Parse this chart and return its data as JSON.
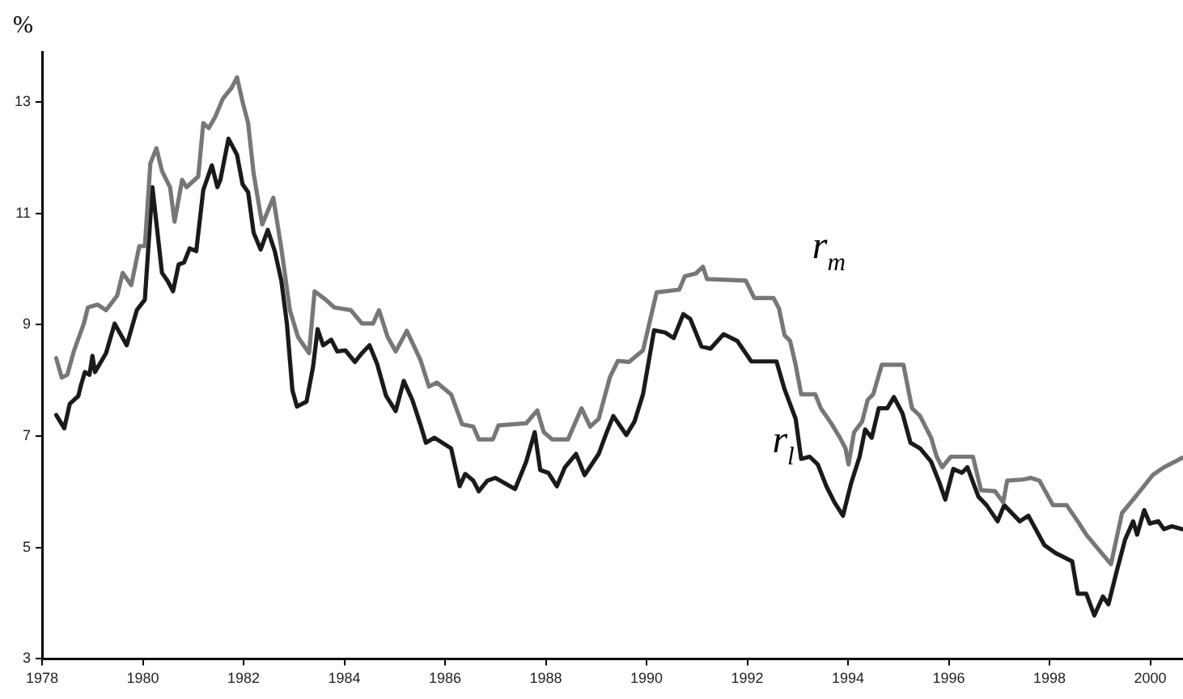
{
  "chart_data": {
    "type": "line",
    "ylabel": "%",
    "xlim": [
      1978,
      2000.65
    ],
    "xticks": [
      1978,
      1980,
      1982,
      1984,
      1986,
      1988,
      1990,
      1992,
      1994,
      1996,
      1998,
      2000
    ],
    "ylim": [
      3,
      13.9
    ],
    "yticks": [
      3,
      5,
      7,
      9,
      11,
      13
    ],
    "grid": false,
    "legend": false,
    "marker": "none",
    "line_style": "solid",
    "series": [
      {
        "name": "r$_{m}$",
        "color": "#777777",
        "x": [
          1978.28,
          1978.39,
          1978.5,
          1978.64,
          1978.83,
          1978.91,
          1979.1,
          1979.27,
          1979.49,
          1979.6,
          1979.77,
          1979.93,
          1980.04,
          1980.15,
          1980.27,
          1980.38,
          1980.54,
          1980.63,
          1980.78,
          1980.87,
          1981.1,
          1981.2,
          1981.31,
          1981.43,
          1981.59,
          1981.76,
          1981.87,
          1981.98,
          1982.09,
          1982.2,
          1982.37,
          1982.48,
          1982.59,
          1982.75,
          1982.92,
          1983.08,
          1983.3,
          1983.41,
          1983.63,
          1983.8,
          1984.13,
          1984.35,
          1984.57,
          1984.69,
          1984.86,
          1985.02,
          1985.24,
          1985.51,
          1985.68,
          1985.84,
          1986.12,
          1986.34,
          1986.56,
          1986.67,
          1986.95,
          1987.06,
          1987.61,
          1987.83,
          1987.96,
          1988.13,
          1988.44,
          1988.71,
          1988.88,
          1989.05,
          1989.27,
          1989.43,
          1989.65,
          1989.93,
          1990.2,
          1990.65,
          1990.76,
          1990.98,
          1991.12,
          1991.2,
          1991.97,
          1992.14,
          1992.52,
          1992.63,
          1992.74,
          1992.85,
          1992.96,
          1993.07,
          1993.35,
          1993.46,
          1993.68,
          1993.84,
          1993.95,
          1994.01,
          1994.12,
          1994.28,
          1994.39,
          1994.5,
          1994.67,
          1995.1,
          1995.27,
          1995.43,
          1995.65,
          1995.76,
          1995.87,
          1996.04,
          1996.48,
          1996.64,
          1996.92,
          1997.08,
          1997.16,
          1997.47,
          1997.63,
          1997.8,
          1998.07,
          1998.34,
          1998.56,
          1998.73,
          1998.95,
          1999.22,
          1999.44,
          1999.66,
          1999.83,
          2000.05,
          2000.27,
          2000.49,
          2000.63
        ],
        "values": [
          8.4,
          8.05,
          8.1,
          8.55,
          9.02,
          9.31,
          9.36,
          9.26,
          9.52,
          9.93,
          9.71,
          10.41,
          10.41,
          11.9,
          12.17,
          11.76,
          11.47,
          10.85,
          11.6,
          11.47,
          11.66,
          12.62,
          12.53,
          12.72,
          13.06,
          13.25,
          13.44,
          13.0,
          12.62,
          11.71,
          10.8,
          11.04,
          11.28,
          10.37,
          9.26,
          8.78,
          8.49,
          9.6,
          9.45,
          9.31,
          9.26,
          9.02,
          9.02,
          9.26,
          8.78,
          8.52,
          8.89,
          8.37,
          7.89,
          7.96,
          7.75,
          7.21,
          7.17,
          6.94,
          6.94,
          7.19,
          7.23,
          7.46,
          7.07,
          6.94,
          6.94,
          7.5,
          7.17,
          7.31,
          8.05,
          8.35,
          8.33,
          8.54,
          9.58,
          9.63,
          9.87,
          9.92,
          10.04,
          9.82,
          9.79,
          9.48,
          9.48,
          9.29,
          8.81,
          8.71,
          8.28,
          7.75,
          7.75,
          7.5,
          7.21,
          6.97,
          6.78,
          6.49,
          7.07,
          7.26,
          7.65,
          7.75,
          8.28,
          8.28,
          7.5,
          7.36,
          6.97,
          6.63,
          6.44,
          6.63,
          6.63,
          6.03,
          6.01,
          5.81,
          6.2,
          6.22,
          6.25,
          6.2,
          5.76,
          5.76,
          5.47,
          5.23,
          4.99,
          4.7,
          5.62,
          5.86,
          6.05,
          6.3,
          6.44,
          6.54,
          6.61
        ]
      },
      {
        "name": "r$_{l}$",
        "color": "#1a1a1a",
        "x": [
          1978.28,
          1978.44,
          1978.55,
          1978.72,
          1978.77,
          1978.85,
          1978.94,
          1979.0,
          1979.05,
          1979.27,
          1979.44,
          1979.68,
          1979.88,
          1980.04,
          1980.19,
          1980.38,
          1980.49,
          1980.6,
          1980.71,
          1980.82,
          1980.93,
          1981.06,
          1981.2,
          1981.37,
          1981.48,
          1981.54,
          1981.7,
          1981.87,
          1981.98,
          1982.09,
          1982.2,
          1982.34,
          1982.48,
          1982.62,
          1982.75,
          1982.86,
          1982.97,
          1983.06,
          1983.25,
          1983.38,
          1983.47,
          1983.58,
          1983.74,
          1983.86,
          1984.02,
          1984.21,
          1984.35,
          1984.5,
          1984.65,
          1984.83,
          1985.02,
          1985.18,
          1985.35,
          1985.51,
          1985.62,
          1985.79,
          1986.12,
          1986.29,
          1986.4,
          1986.56,
          1986.67,
          1986.84,
          1987.0,
          1987.39,
          1987.61,
          1987.78,
          1987.89,
          1988.05,
          1988.22,
          1988.38,
          1988.6,
          1988.77,
          1989.05,
          1989.21,
          1989.34,
          1989.6,
          1989.76,
          1989.93,
          1990.15,
          1990.37,
          1990.54,
          1990.73,
          1990.87,
          1991.09,
          1991.27,
          1991.53,
          1991.8,
          1992.08,
          1992.58,
          1992.74,
          1992.96,
          1993.07,
          1993.24,
          1993.4,
          1993.57,
          1993.73,
          1993.9,
          1994.06,
          1994.23,
          1994.34,
          1994.47,
          1994.61,
          1994.78,
          1994.91,
          1995.08,
          1995.24,
          1995.43,
          1995.65,
          1995.82,
          1995.93,
          1996.09,
          1996.26,
          1996.37,
          1996.59,
          1996.75,
          1996.97,
          1997.1,
          1997.41,
          1997.58,
          1997.9,
          1998.12,
          1998.45,
          1998.56,
          1998.73,
          1998.89,
          1999.06,
          1999.17,
          1999.33,
          1999.5,
          1999.66,
          1999.74,
          1999.88,
          1999.99,
          2000.16,
          2000.27,
          2000.43,
          2000.63
        ],
        "values": [
          7.38,
          7.14,
          7.58,
          7.72,
          7.91,
          8.15,
          8.1,
          8.44,
          8.15,
          8.49,
          9.02,
          8.63,
          9.26,
          9.45,
          11.47,
          9.93,
          9.79,
          9.6,
          10.08,
          10.12,
          10.37,
          10.32,
          11.42,
          11.86,
          11.47,
          11.6,
          12.34,
          12.05,
          11.52,
          11.38,
          10.65,
          10.35,
          10.7,
          10.32,
          9.79,
          9.02,
          7.82,
          7.53,
          7.62,
          8.25,
          8.92,
          8.63,
          8.73,
          8.52,
          8.54,
          8.33,
          8.49,
          8.63,
          8.3,
          7.72,
          7.45,
          7.99,
          7.65,
          7.21,
          6.88,
          6.97,
          6.78,
          6.1,
          6.32,
          6.2,
          6.01,
          6.2,
          6.25,
          6.05,
          6.54,
          7.07,
          6.39,
          6.34,
          6.1,
          6.44,
          6.68,
          6.3,
          6.68,
          7.07,
          7.36,
          7.02,
          7.26,
          7.75,
          8.9,
          8.86,
          8.76,
          9.19,
          9.1,
          8.61,
          8.57,
          8.83,
          8.71,
          8.34,
          8.34,
          7.84,
          7.31,
          6.59,
          6.63,
          6.49,
          6.1,
          5.81,
          5.57,
          6.15,
          6.63,
          7.12,
          6.97,
          7.5,
          7.5,
          7.7,
          7.41,
          6.88,
          6.78,
          6.54,
          6.15,
          5.86,
          6.41,
          6.34,
          6.44,
          5.91,
          5.76,
          5.47,
          5.76,
          5.47,
          5.57,
          5.04,
          4.9,
          4.75,
          4.17,
          4.17,
          3.78,
          4.12,
          3.98,
          4.56,
          5.14,
          5.47,
          5.23,
          5.67,
          5.43,
          5.47,
          5.33,
          5.38,
          5.33
        ]
      }
    ]
  }
}
